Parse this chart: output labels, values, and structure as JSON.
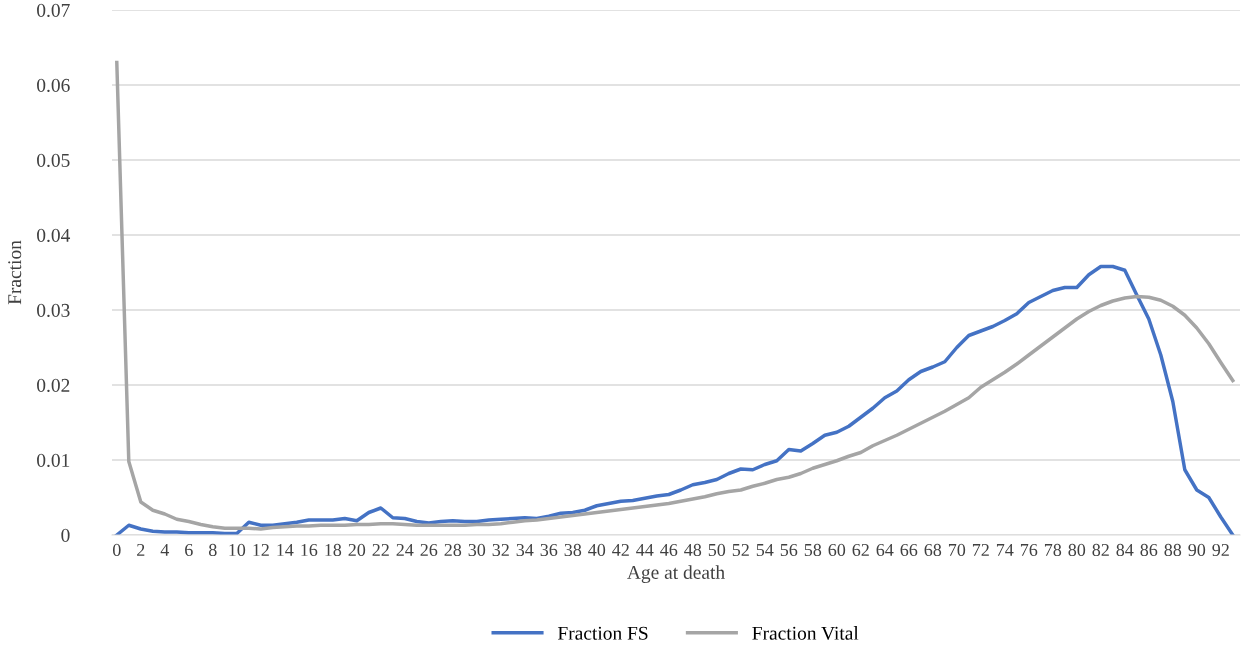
{
  "chart_data": {
    "type": "line",
    "xlabel": "Age at death",
    "ylabel": "Fraction",
    "categories": [
      "0",
      null,
      "2",
      null,
      "4",
      null,
      "6",
      null,
      "8",
      null,
      "10",
      null,
      "12",
      null,
      "14",
      null,
      "16",
      null,
      "18",
      null,
      "20",
      null,
      "22",
      null,
      "24",
      null,
      "26",
      null,
      "28",
      null,
      "30",
      null,
      "32",
      null,
      "34",
      null,
      "36",
      null,
      "38",
      null,
      "40",
      null,
      "42",
      null,
      "44",
      null,
      "46",
      null,
      "48",
      null,
      "50",
      null,
      "52",
      null,
      "54",
      null,
      "56",
      null,
      "58",
      null,
      "60",
      null,
      "62",
      null,
      "64",
      null,
      "66",
      null,
      "68",
      null,
      "70",
      null,
      "72",
      null,
      "74",
      null,
      "76",
      null,
      "78",
      null,
      "80",
      null,
      "82",
      null,
      "84",
      null,
      "86",
      null,
      "88",
      null,
      "90",
      null,
      "92",
      null
    ],
    "series": [
      {
        "name": "Fraction FS",
        "color": "#4472c4",
        "values": [
          0,
          0.0013,
          0.0008,
          0.0005,
          0.0004,
          0.0004,
          0.0003,
          0.0003,
          0.0003,
          0.0002,
          0.0002,
          0.0017,
          0.0013,
          0.0013,
          0.0015,
          0.0017,
          0.002,
          0.002,
          0.002,
          0.0022,
          0.0019,
          0.003,
          0.0036,
          0.0023,
          0.0022,
          0.0018,
          0.0016,
          0.0018,
          0.0019,
          0.0018,
          0.0018,
          0.002,
          0.0021,
          0.0022,
          0.0023,
          0.0022,
          0.0025,
          0.0029,
          0.003,
          0.0033,
          0.0039,
          0.0042,
          0.0045,
          0.0046,
          0.0049,
          0.0052,
          0.0054,
          0.006,
          0.0067,
          0.007,
          0.0074,
          0.0082,
          0.0088,
          0.0087,
          0.0094,
          0.0099,
          0.0114,
          0.0112,
          0.0122,
          0.0133,
          0.0137,
          0.0145,
          0.0157,
          0.0169,
          0.0183,
          0.0192,
          0.0207,
          0.0218,
          0.0224,
          0.0231,
          0.025,
          0.0266,
          0.0272,
          0.0278,
          0.0286,
          0.0295,
          0.031,
          0.0318,
          0.0326,
          0.033,
          0.033,
          0.0347,
          0.0358,
          0.0358,
          0.0353,
          0.032,
          0.0288,
          0.024,
          0.0178,
          0.0087,
          0.006,
          0.005,
          0.0024,
          0
        ]
      },
      {
        "name": "Fraction Vital",
        "color": "#a5a5a5",
        "values": [
          0.063,
          0.0098,
          0.0044,
          0.0033,
          0.0028,
          0.0021,
          0.0018,
          0.0014,
          0.0011,
          0.0009,
          0.0009,
          0.0009,
          0.0008,
          0.001,
          0.0011,
          0.0012,
          0.0012,
          0.0013,
          0.0013,
          0.0013,
          0.0014,
          0.0014,
          0.0015,
          0.0015,
          0.0014,
          0.0013,
          0.0013,
          0.0013,
          0.0013,
          0.0013,
          0.0014,
          0.0014,
          0.0015,
          0.0017,
          0.0019,
          0.002,
          0.0022,
          0.0024,
          0.0026,
          0.0028,
          0.003,
          0.0032,
          0.0034,
          0.0036,
          0.0038,
          0.004,
          0.0042,
          0.0045,
          0.0048,
          0.0051,
          0.0055,
          0.0058,
          0.006,
          0.0065,
          0.0069,
          0.0074,
          0.0077,
          0.0082,
          0.0089,
          0.0094,
          0.0099,
          0.0105,
          0.011,
          0.0119,
          0.0126,
          0.0133,
          0.0141,
          0.0149,
          0.0157,
          0.0165,
          0.0174,
          0.0183,
          0.0197,
          0.0207,
          0.0217,
          0.0228,
          0.024,
          0.0252,
          0.0264,
          0.0276,
          0.0288,
          0.0298,
          0.0306,
          0.0312,
          0.0316,
          0.0318,
          0.0317,
          0.0313,
          0.0305,
          0.0293,
          0.0276,
          0.0255,
          0.023,
          0.0206
        ]
      }
    ],
    "ylim": [
      0,
      0.07
    ],
    "yticks": [
      {
        "value": 0,
        "label": "0"
      },
      0.01,
      0.02,
      0.03,
      0.04,
      0.05,
      0.06,
      0.07
    ],
    "grid": "y",
    "legend": "bottom",
    "marker": "none",
    "line_style": "solid"
  }
}
